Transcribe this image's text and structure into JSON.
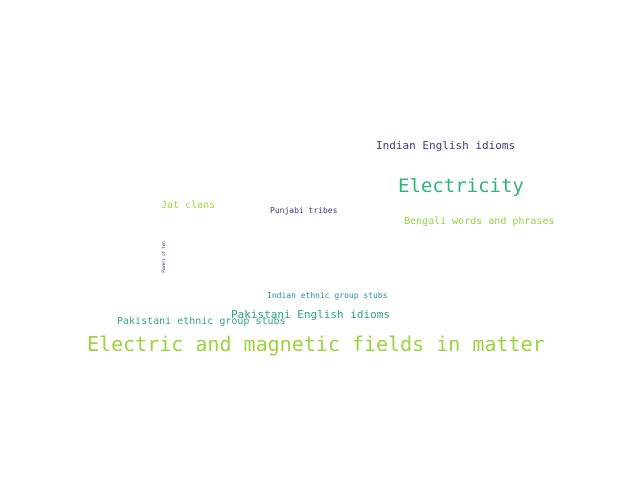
{
  "cloud": {
    "words": {
      "electric_fields": {
        "text": "Electric and magnetic fields in matter",
        "color": "#9bd43f"
      },
      "electricity": {
        "text": "Electricity",
        "color": "#2db37c"
      },
      "indian_english_idioms": {
        "text": "Indian English idioms",
        "color": "#3b3f84"
      },
      "bengali_words": {
        "text": "Bengali words and phrases",
        "color": "#93d449"
      },
      "pakistani_english_idioms": {
        "text": "Pakistani English idioms",
        "color": "#2ea489"
      },
      "pakistani_ethnic_stubs": {
        "text": "Pakistani ethnic group stubs",
        "color": "#35a28b"
      },
      "indian_ethnic_stubs": {
        "text": "Indian ethnic group stubs",
        "color": "#2a8f8c"
      },
      "jat_clans": {
        "text": "Jat clans",
        "color": "#a6d63d"
      },
      "punjabi_tribes": {
        "text": "Punjabi tribes",
        "color": "#3d3a7f"
      },
      "vertical_small": {
        "text": "Powers of ten",
        "color": "#4a1e63"
      }
    }
  }
}
